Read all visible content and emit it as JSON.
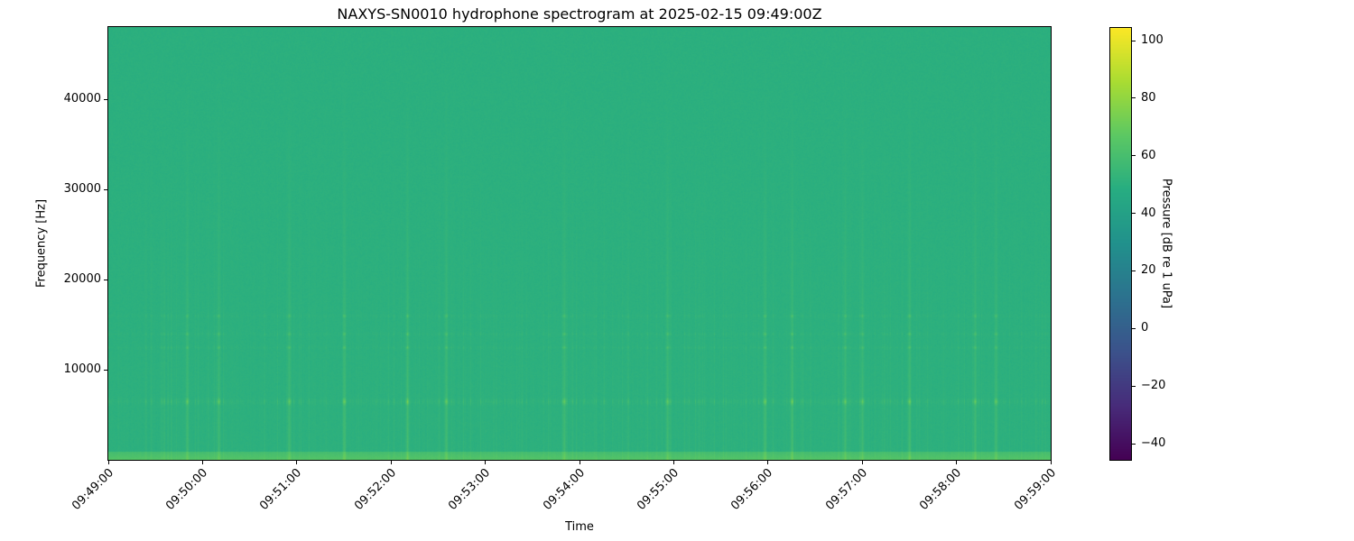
{
  "chart_data": {
    "type": "heatmap",
    "title": "NAXYS-SN0010 hydrophone spectrogram at 2025-02-15 09:49:00Z",
    "xlabel": "Time",
    "ylabel": "Frequency [Hz]",
    "colorbar_label": "Pressure [dB re 1 uPa]",
    "colormap": "viridis",
    "xlim": [
      "09:49:00",
      "09:59:00"
    ],
    "ylim": [
      0,
      48000
    ],
    "clim": [
      -45.6,
      104.7
    ],
    "x_ticks": [
      "09:49:00",
      "09:50:00",
      "09:51:00",
      "09:52:00",
      "09:53:00",
      "09:54:00",
      "09:55:00",
      "09:56:00",
      "09:57:00",
      "09:58:00",
      "09:59:00"
    ],
    "y_ticks": [
      10000,
      20000,
      30000,
      40000
    ],
    "colorbar_ticks": [
      -40,
      -20,
      0,
      20,
      40,
      60,
      80,
      100
    ],
    "background_level_db": 50,
    "tonal_bands_hz": [
      6500,
      12500,
      14000,
      16000
    ],
    "loud_event_times": [
      "09:49:50",
      "09:50:10",
      "09:50:55",
      "09:51:30",
      "09:52:10",
      "09:52:35",
      "09:53:50",
      "09:54:56",
      "09:55:58",
      "09:56:15",
      "09:56:49",
      "09:57:00",
      "09:57:30",
      "09:58:12",
      "09:58:25"
    ],
    "grid": false
  }
}
